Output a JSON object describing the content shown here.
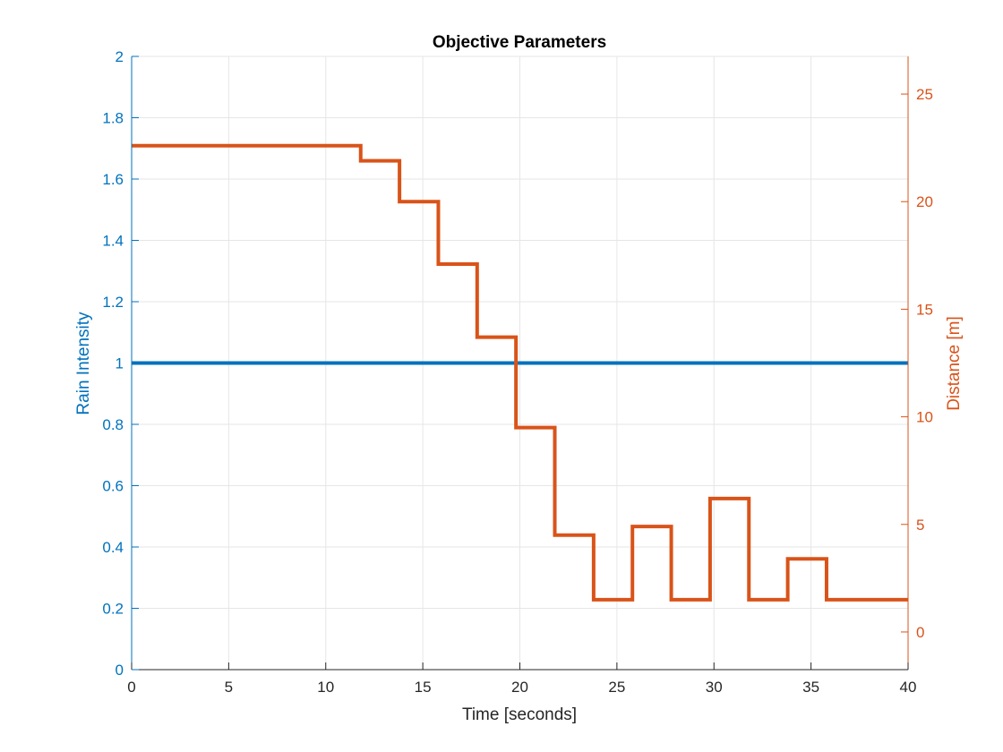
{
  "chart_data": {
    "type": "line",
    "title": "Objective Parameters",
    "xlabel": "Time [seconds]",
    "ylabel_left": "Rain Intensity",
    "ylabel_right": "Distance [m]",
    "xlim": [
      0,
      40
    ],
    "ylim_left": [
      0,
      2
    ],
    "ylim_right": [
      -1.75,
      26.75
    ],
    "x_ticks": [
      0,
      5,
      10,
      15,
      20,
      25,
      30,
      35,
      40
    ],
    "x_tick_labels": [
      "0",
      "5",
      "10",
      "15",
      "20",
      "25",
      "30",
      "35",
      "40"
    ],
    "y_left_ticks": [
      0,
      0.2,
      0.4,
      0.6,
      0.8,
      1,
      1.2,
      1.4,
      1.6,
      1.8,
      2
    ],
    "y_left_tick_labels": [
      "0",
      "0.2",
      "0.4",
      "0.6",
      "0.8",
      "1",
      "1.2",
      "1.4",
      "1.6",
      "1.8",
      "2"
    ],
    "y_right_ticks": [
      0,
      5,
      10,
      15,
      20,
      25
    ],
    "y_right_tick_labels": [
      "0",
      "5",
      "10",
      "15",
      "20",
      "25"
    ],
    "grid": true,
    "colors": {
      "left_axis": "#0072BD",
      "right_axis": "#D95319",
      "grid": "#e6e6e6",
      "axes": "#262626"
    },
    "series": [
      {
        "axis": "left",
        "style": "line",
        "x": [
          0,
          40
        ],
        "y": [
          1,
          1
        ]
      },
      {
        "axis": "right",
        "style": "step",
        "x": [
          0,
          11.8,
          13.8,
          15.8,
          17.8,
          19.8,
          21.8,
          23.8,
          25.8,
          27.8,
          29.8,
          31.8,
          33.8,
          35.8,
          40
        ],
        "y": [
          22.6,
          21.9,
          20.0,
          17.1,
          13.7,
          9.5,
          4.5,
          1.5,
          4.9,
          1.5,
          6.2,
          1.5,
          3.4,
          1.5,
          1.5
        ]
      }
    ]
  }
}
